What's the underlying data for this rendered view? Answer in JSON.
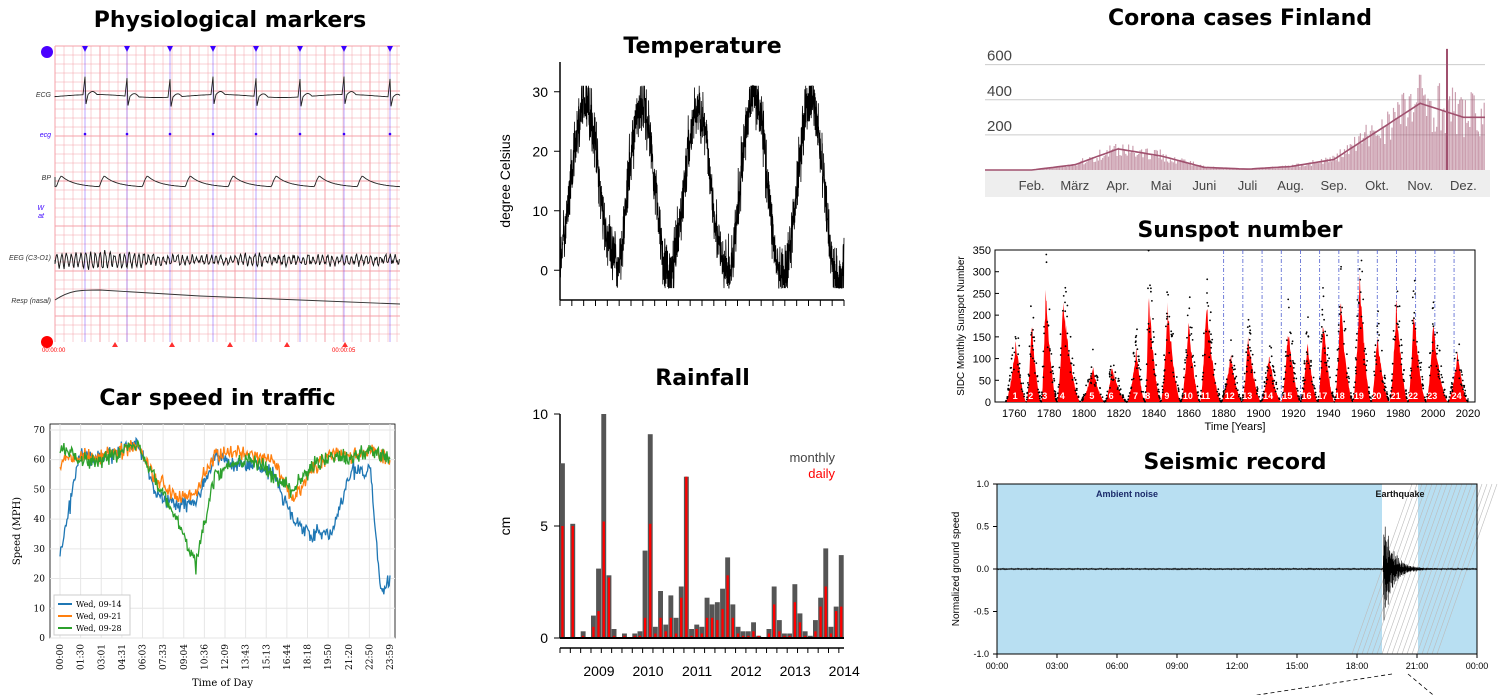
{
  "titles": {
    "physio": "Physiological markers",
    "temp": "Temperature",
    "corona": "Corona cases Finland",
    "sunspot": "Sunspot number",
    "car": "Car speed in traffic",
    "rain": "Rainfall",
    "seismic": "Seismic record"
  },
  "colors": {
    "grid_pink": "#f4a0a8",
    "marker_purple": "#3a00ff",
    "red_dot": "#ff0000",
    "corona": "#a0506e",
    "sunspot_red": "#ff0000",
    "seismic_bg": "#b8dff2",
    "car_blue": "#1f77b4",
    "car_orange": "#ff7f0e",
    "car_green": "#2ca02c",
    "rain_monthly": "#555555",
    "rain_daily": "#ff0000"
  },
  "chart_data": [
    {
      "id": "physio",
      "type": "line",
      "channels": [
        "ECG",
        "ecg",
        "BP",
        "W\nat",
        "EEG (C3-O1)",
        "Resp (nasal)"
      ],
      "time_start": "00:00:00",
      "time_mark": "00:00:05"
    },
    {
      "id": "temp",
      "type": "line",
      "ylabel": "degree Celsius",
      "yticks": [
        0,
        10,
        20,
        30
      ],
      "ylim": [
        -5,
        35
      ],
      "peaks_approx": [
        28,
        28,
        27,
        30,
        29
      ],
      "troughs_approx": [
        2,
        -1,
        0,
        -2,
        -2
      ]
    },
    {
      "id": "corona",
      "type": "area",
      "yticks": [
        200,
        400,
        600
      ],
      "ylim": [
        0,
        700
      ],
      "months": [
        "Feb.",
        "März",
        "Apr.",
        "Mai",
        "Juni",
        "Juli",
        "Aug.",
        "Sep.",
        "Okt.",
        "Nov.",
        "Dez."
      ],
      "monthly_avg_approx": [
        0,
        30,
        120,
        80,
        15,
        5,
        20,
        60,
        220,
        380,
        300
      ]
    },
    {
      "id": "sunspot",
      "type": "area",
      "ylabel": "SIDC Monthly Sunspot Number",
      "xlabel": "Time [Years]",
      "yticks": [
        0,
        50,
        100,
        150,
        200,
        250,
        300,
        350
      ],
      "ylim": [
        0,
        350
      ],
      "xticks": [
        1760,
        1780,
        1800,
        1820,
        1840,
        1860,
        1880,
        1900,
        1920,
        1940,
        1960,
        1980,
        2000,
        2020
      ],
      "cycles": [
        "1",
        "2",
        "3",
        "4",
        "5",
        "6",
        "7",
        "8",
        "9",
        "10",
        "11",
        "12",
        "13",
        "14",
        "15",
        "16",
        "17",
        "18",
        "19",
        "20",
        "21",
        "22",
        "23",
        "24"
      ],
      "cycle_peak_years": [
        1761,
        1770,
        1778,
        1788,
        1805,
        1816,
        1830,
        1837,
        1848,
        1860,
        1870,
        1884,
        1894,
        1906,
        1917,
        1928,
        1937,
        1947,
        1958,
        1968,
        1979,
        1989,
        2000,
        2014
      ],
      "cycle_peak_values": [
        145,
        185,
        265,
        235,
        82,
        82,
        125,
        245,
        220,
        185,
        235,
        115,
        150,
        110,
        175,
        140,
        190,
        230,
        285,
        160,
        235,
        215,
        180,
        115
      ]
    },
    {
      "id": "car",
      "type": "line",
      "ylabel": "Speed (MPH)",
      "xlabel": "Time of Day",
      "yticks": [
        0,
        10,
        20,
        30,
        40,
        50,
        60,
        70
      ],
      "ylim": [
        0,
        72
      ],
      "xticks": [
        "00:00",
        "01:30",
        "03:01",
        "04:31",
        "06:03",
        "07:33",
        "09:04",
        "10:36",
        "12:09",
        "13:43",
        "15:13",
        "16:44",
        "18:18",
        "19:50",
        "21:20",
        "22:50",
        "23:59"
      ],
      "legend_position": "lower-left",
      "series": [
        {
          "name": "Wed, 09-14",
          "key": "blue",
          "points": [
            [
              0,
              27
            ],
            [
              1,
              62
            ],
            [
              2,
              60
            ],
            [
              3,
              63
            ],
            [
              4,
              66
            ],
            [
              5,
              48
            ],
            [
              6,
              45
            ],
            [
              7,
              46
            ],
            [
              8,
              61
            ],
            [
              9,
              58
            ],
            [
              10,
              59
            ],
            [
              11,
              55
            ],
            [
              12,
              40
            ],
            [
              13,
              35
            ],
            [
              14,
              35
            ],
            [
              15,
              56
            ],
            [
              16,
              57
            ],
            [
              16.5,
              16
            ],
            [
              17,
              20
            ]
          ]
        },
        {
          "name": "Wed, 09-21",
          "key": "orange",
          "points": [
            [
              0,
              59
            ],
            [
              1,
              62
            ],
            [
              2,
              61
            ],
            [
              3,
              63
            ],
            [
              4,
              65
            ],
            [
              5,
              53
            ],
            [
              6,
              48
            ],
            [
              7,
              49
            ],
            [
              8,
              62
            ],
            [
              9,
              62
            ],
            [
              10,
              61
            ],
            [
              11,
              60
            ],
            [
              12,
              46
            ],
            [
              13,
              57
            ],
            [
              14,
              62
            ],
            [
              15,
              61
            ],
            [
              16,
              63
            ],
            [
              17,
              60
            ]
          ]
        },
        {
          "name": "Wed, 09-28",
          "key": "green",
          "points": [
            [
              0,
              65
            ],
            [
              1,
              60
            ],
            [
              2,
              60
            ],
            [
              3,
              62
            ],
            [
              4,
              66
            ],
            [
              5,
              52
            ],
            [
              6,
              40
            ],
            [
              7,
              25
            ],
            [
              8,
              55
            ],
            [
              9,
              59
            ],
            [
              10,
              60
            ],
            [
              11,
              54
            ],
            [
              12,
              50
            ],
            [
              13,
              58
            ],
            [
              14,
              61
            ],
            [
              15,
              60
            ],
            [
              16,
              64
            ],
            [
              17,
              60
            ]
          ]
        }
      ]
    },
    {
      "id": "rain",
      "type": "bar",
      "ylabel": "cm",
      "yticks": [
        0,
        5,
        10
      ],
      "ylim": [
        0,
        10
      ],
      "xticks": [
        "2009",
        "2010",
        "2011",
        "2012",
        "2013",
        "2014"
      ],
      "legend": [
        "monthly",
        "daily"
      ],
      "legend_position": "right",
      "monthly": [
        7.8,
        0,
        5.1,
        0,
        0.3,
        0,
        1.0,
        3.1,
        10.0,
        2.8,
        0.4,
        0,
        0.2,
        0,
        0.2,
        0.3,
        3.9,
        9.1,
        0.5,
        2.1,
        0.6,
        1.9,
        0.9,
        2.3,
        7.2,
        0.4,
        0.6,
        0.5,
        1.8,
        1.5,
        1.6,
        2.2,
        3.6,
        1.5,
        0.5,
        0.3,
        0.3,
        0.7,
        0.1,
        0,
        0.4,
        2.3,
        0.8,
        0.2,
        0.2,
        2.4,
        1.1,
        0.3,
        0.1,
        0.8,
        1.8,
        4.0,
        0.5,
        1.4,
        3.7
      ],
      "daily": [
        5.0,
        0,
        5.0,
        0,
        0.1,
        0,
        0.5,
        1.2,
        5.2,
        2.7,
        0.1,
        0,
        0.1,
        0,
        0.1,
        0.1,
        0.9,
        5.1,
        0.2,
        0.9,
        0.3,
        0.9,
        0.2,
        1.8,
        7.2,
        0.1,
        0.4,
        0.2,
        0.9,
        0.9,
        0.8,
        1.3,
        2.8,
        0.9,
        0.2,
        0.1,
        0.1,
        0.3,
        0.1,
        0,
        0.2,
        1.5,
        0.3,
        0.1,
        0.1,
        1.6,
        0.7,
        0.1,
        0,
        0.3,
        1.4,
        2.3,
        0.2,
        1.2,
        1.4
      ]
    },
    {
      "id": "seismic",
      "type": "line",
      "ylabel": "Normalized ground speed",
      "yticks": [
        -1.0,
        -0.5,
        0.0,
        0.5,
        1.0
      ],
      "ylim": [
        -1,
        1
      ],
      "xticks": [
        "00:00",
        "03:00",
        "06:00",
        "09:00",
        "12:00",
        "15:00",
        "18:00",
        "21:00",
        "00:00"
      ],
      "annotations": [
        "Ambient noise",
        "Earthquake"
      ],
      "earthquake_window_hours": [
        19.25,
        21.05
      ],
      "peak_amplitude": 0.67
    }
  ]
}
